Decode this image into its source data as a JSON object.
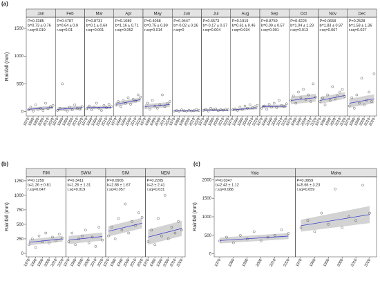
{
  "chart_data": [
    {
      "type": "scatter",
      "panel_label": "(a)",
      "y_label": "Rainfall (mm)",
      "xlim": [
        1966,
        2025
      ],
      "xticks": [
        1970,
        1980,
        1990,
        2000,
        2010,
        2020
      ],
      "ylim": [
        -80,
        1700
      ],
      "yticks": [
        0,
        500,
        1000,
        1500
      ],
      "x": [
        1970,
        1975,
        1980,
        1985,
        1990,
        1995,
        2000,
        2005,
        2010,
        2015,
        2020
      ],
      "point_color": "#333333",
      "line_color": "#3f3fd0",
      "band_color": "#d3d3d3",
      "facets": [
        {
          "name": "Jan",
          "stats": [
            "P=0.3385",
            "b=0.73 ± 0.76",
            "r.sq=0.019"
          ],
          "values": [
            30,
            80,
            10,
            120,
            40,
            60,
            20,
            150,
            50,
            90,
            110
          ],
          "trend": [
            40,
            75
          ],
          "band": [
            10,
            70,
            45,
            105
          ]
        },
        {
          "name": "Feb",
          "stats": [
            "P=0.4787",
            "b=0.64 ± 0.9",
            "r.sq=0.01"
          ],
          "values": [
            20,
            60,
            500,
            40,
            10,
            80,
            30,
            120,
            60,
            40,
            90
          ],
          "trend": [
            40,
            70
          ],
          "band": [
            5,
            75,
            35,
            105
          ]
        },
        {
          "name": "Mar",
          "stats": [
            "P=0.8731",
            "b=0.1 ± 0.64",
            "r.sq=0.001"
          ],
          "values": [
            50,
            100,
            30,
            80,
            150,
            60,
            20,
            110,
            70,
            130,
            90
          ],
          "trend": [
            70,
            75
          ],
          "band": [
            40,
            100,
            45,
            105
          ]
        },
        {
          "name": "Apr",
          "stats": [
            "P=0.1089",
            "b=1.16 ± 0.71",
            "r.sq=0.052"
          ],
          "values": [
            120,
            180,
            90,
            200,
            150,
            250,
            130,
            220,
            190,
            300,
            260
          ],
          "trend": [
            130,
            215
          ],
          "band": [
            90,
            170,
            175,
            255
          ]
        },
        {
          "name": "May",
          "stats": [
            "P=0.4058",
            "b=0.75 ± 0.89",
            "r.sq=0.014"
          ],
          "values": [
            80,
            150,
            40,
            200,
            100,
            60,
            120,
            300,
            90,
            140,
            180
          ],
          "trend": [
            90,
            125
          ],
          "band": [
            45,
            135,
            80,
            170
          ]
        },
        {
          "name": "Jun",
          "stats": [
            "P=0.9447",
            "b=-0.02 ± 0.26",
            "r.sq=0"
          ],
          "values": [
            10,
            20,
            5,
            30,
            15,
            8,
            25,
            12,
            18,
            40,
            20
          ],
          "trend": [
            10,
            10
          ],
          "band": [
            0,
            20,
            0,
            20
          ]
        },
        {
          "name": "Jul",
          "stats": [
            "P=0.6573",
            "b=-0.17 ± 0.37",
            "r.sq=0.004"
          ],
          "values": [
            20,
            40,
            10,
            60,
            30,
            50,
            15,
            35,
            25,
            45,
            30
          ],
          "trend": [
            30,
            25
          ],
          "band": [
            10,
            50,
            5,
            45
          ]
        },
        {
          "name": "Aug",
          "stats": [
            "P=0.1919",
            "b=0.61 ± 0.46",
            "r.sq=0.034"
          ],
          "values": [
            30,
            50,
            20,
            80,
            40,
            100,
            60,
            120,
            70,
            90,
            110
          ],
          "trend": [
            30,
            65
          ],
          "band": [
            5,
            55,
            40,
            90
          ]
        },
        {
          "name": "Sep",
          "stats": [
            "P=0.8759",
            "b=0.09 ± 0.57",
            "r.sq=0.001"
          ],
          "values": [
            60,
            100,
            40,
            130,
            80,
            150,
            70,
            200,
            110,
            90,
            140
          ],
          "trend": [
            90,
            95
          ],
          "band": [
            60,
            120,
            65,
            125
          ]
        },
        {
          "name": "Oct",
          "stats": [
            "P=0.4224",
            "b=1.04 ± 1.29",
            "r.sq=0.013"
          ],
          "values": [
            200,
            280,
            150,
            350,
            250,
            400,
            220,
            300,
            180,
            500,
            260
          ],
          "trend": [
            200,
            250
          ],
          "band": [
            130,
            270,
            180,
            320
          ]
        },
        {
          "name": "Nov",
          "stats": [
            "P=0.0658",
            "b=1.83 ± 0.97",
            "r.sq=0.067"
          ],
          "values": [
            180,
            250,
            120,
            300,
            200,
            450,
            230,
            280,
            350,
            400,
            270
          ],
          "trend": [
            200,
            290
          ],
          "band": [
            140,
            260,
            230,
            350
          ]
        },
        {
          "name": "Dec",
          "stats": [
            "P=0.2528",
            "b=1.58 ± 1.36",
            "r.sq=0.027"
          ],
          "values": [
            100,
            250,
            60,
            300,
            150,
            600,
            120,
            200,
            350,
            180,
            680
          ],
          "trend": [
            150,
            230
          ],
          "band": [
            70,
            230,
            150,
            310
          ]
        }
      ]
    },
    {
      "type": "scatter",
      "panel_label": "(b)",
      "y_label": "Rainfall (mm)",
      "xlim": [
        1966,
        2025
      ],
      "xticks": [
        1970,
        1980,
        1990,
        2000,
        2010,
        2020
      ],
      "ylim": [
        -60,
        1320
      ],
      "yticks": [
        0,
        250,
        500,
        750,
        1000,
        1250
      ],
      "x": [
        1970,
        1975,
        1980,
        1985,
        1990,
        1995,
        2000,
        2005,
        2010,
        2015,
        2020
      ],
      "point_color": "#333333",
      "line_color": "#3f3fd0",
      "band_color": "#d3d3d3",
      "facets": [
        {
          "name": "FIM",
          "stats": [
            "P=0.1259",
            "b=1.26 ± 0.81",
            "r.sq=0.047"
          ],
          "values": [
            150,
            250,
            100,
            300,
            200,
            350,
            180,
            280,
            220,
            330,
            260
          ],
          "trend": [
            190,
            250
          ],
          "band": [
            140,
            240,
            200,
            300
          ]
        },
        {
          "name": "SWM",
          "stats": [
            "P=0.3411",
            "b=1.26 ± 1.31",
            "r.sq=0.019"
          ],
          "values": [
            200,
            350,
            150,
            250,
            300,
            400,
            180,
            280,
            120,
            450,
            230
          ],
          "trend": [
            230,
            290
          ],
          "band": [
            160,
            300,
            220,
            360
          ]
        },
        {
          "name": "SIM",
          "stats": [
            "P=0.0905",
            "b=2.88 ± 1.67",
            "r.sq=0.057"
          ],
          "values": [
            300,
            450,
            250,
            600,
            400,
            850,
            350,
            550,
            480,
            700,
            620
          ],
          "trend": [
            380,
            520
          ],
          "band": [
            290,
            470,
            430,
            610
          ]
        },
        {
          "name": "NEM",
          "stats": [
            "P=0.2205",
            "b=3 ± 2.41",
            "r.sq=0.031"
          ],
          "values": [
            200,
            400,
            150,
            600,
            300,
            1000,
            250,
            450,
            350,
            550,
            400
          ],
          "trend": [
            280,
            430
          ],
          "band": [
            150,
            410,
            300,
            560
          ]
        }
      ]
    },
    {
      "type": "scatter",
      "panel_label": "(c)",
      "y_label": "Rainfall (mm)",
      "xlim": [
        1966,
        2025
      ],
      "xticks": [
        1970,
        1980,
        1990,
        2000,
        2010,
        2020
      ],
      "ylim": [
        -80,
        2080
      ],
      "yticks": [
        0,
        500,
        1000,
        1500,
        2000
      ],
      "x": [
        1970,
        1975,
        1980,
        1985,
        1990,
        1995,
        2000,
        2005,
        2010,
        2015,
        2020
      ],
      "point_color": "#333333",
      "line_color": "#3f3fd0",
      "band_color": "#d3d3d3",
      "facets": [
        {
          "name": "Yala",
          "stats": [
            "P=0.0347",
            "b=2.43 ± 1.12",
            "r.sq=0.088"
          ],
          "values": [
            350,
            450,
            300,
            500,
            400,
            600,
            350,
            450,
            500,
            650,
            550
          ],
          "trend": [
            360,
            480
          ],
          "band": [
            280,
            440,
            400,
            560
          ]
        },
        {
          "name": "Maha",
          "stats": [
            "P=0.0859",
            "b=5.66 ± 3.23",
            "r.sq=0.059"
          ],
          "values": [
            700,
            900,
            600,
            1100,
            800,
            1750,
            700,
            1000,
            900,
            1850,
            1100
          ],
          "trend": [
            760,
            1060
          ],
          "band": [
            600,
            920,
            830,
            1290
          ]
        }
      ]
    }
  ]
}
